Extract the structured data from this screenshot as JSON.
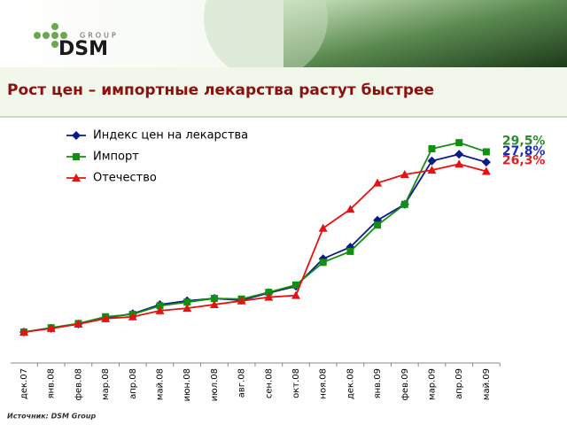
{
  "header": {
    "logo_main": "DSM",
    "logo_sub": "GROUP"
  },
  "footer": "Источник: DSM Group",
  "chart_data": {
    "type": "line",
    "title": "Рост цен – импортные лекарства растут быстрее",
    "categories": [
      "дек.07",
      "янв.08",
      "фев.08",
      "мар.08",
      "апр.08",
      "май.08",
      "июн.08",
      "июл.08",
      "авг.08",
      "сен.08",
      "окт.08",
      "ноя.08",
      "дек.08",
      "янв.09",
      "фев.09",
      "мар.09",
      "апр.09",
      "май.09"
    ],
    "series": [
      {
        "name": "Индекс цен на лекарства",
        "color": "#0a1a8c",
        "marker": "diamond",
        "values": [
          0,
          0.6,
          1.3,
          2.3,
          3.0,
          4.5,
          5.1,
          5.5,
          5.2,
          6.4,
          7.5,
          12.0,
          13.9,
          18.3,
          20.9,
          28.0,
          29.1,
          27.8
        ],
        "value_labels": [
          null,
          null,
          null,
          null,
          null,
          null,
          null,
          null,
          null,
          null,
          null,
          null,
          null,
          null,
          null,
          null,
          null,
          "27,8%"
        ],
        "label_color": "#1a2bbf"
      },
      {
        "name": "Импорт",
        "color": "#109010",
        "marker": "square",
        "values": [
          0,
          0.7,
          1.4,
          2.5,
          2.9,
          4.3,
          4.9,
          5.5,
          5.4,
          6.5,
          7.7,
          11.4,
          13.2,
          17.5,
          20.9,
          30.0,
          31.0,
          29.5
        ],
        "value_labels": [
          null,
          null,
          null,
          null,
          null,
          null,
          null,
          null,
          null,
          null,
          null,
          null,
          null,
          null,
          null,
          null,
          null,
          "29,5%"
        ],
        "label_color": "#2e8b2e"
      },
      {
        "name": "Отечество",
        "color": "#e81010",
        "marker": "triangle",
        "values": [
          0,
          0.6,
          1.3,
          2.2,
          2.5,
          3.5,
          3.9,
          4.5,
          5.1,
          5.7,
          6.0,
          17.0,
          20.1,
          24.4,
          25.8,
          26.5,
          27.5,
          26.3
        ],
        "value_labels": [
          null,
          null,
          null,
          null,
          null,
          null,
          null,
          null,
          null,
          null,
          null,
          null,
          null,
          null,
          null,
          null,
          null,
          "26,3%"
        ],
        "label_color": "#e02020"
      }
    ]
  }
}
